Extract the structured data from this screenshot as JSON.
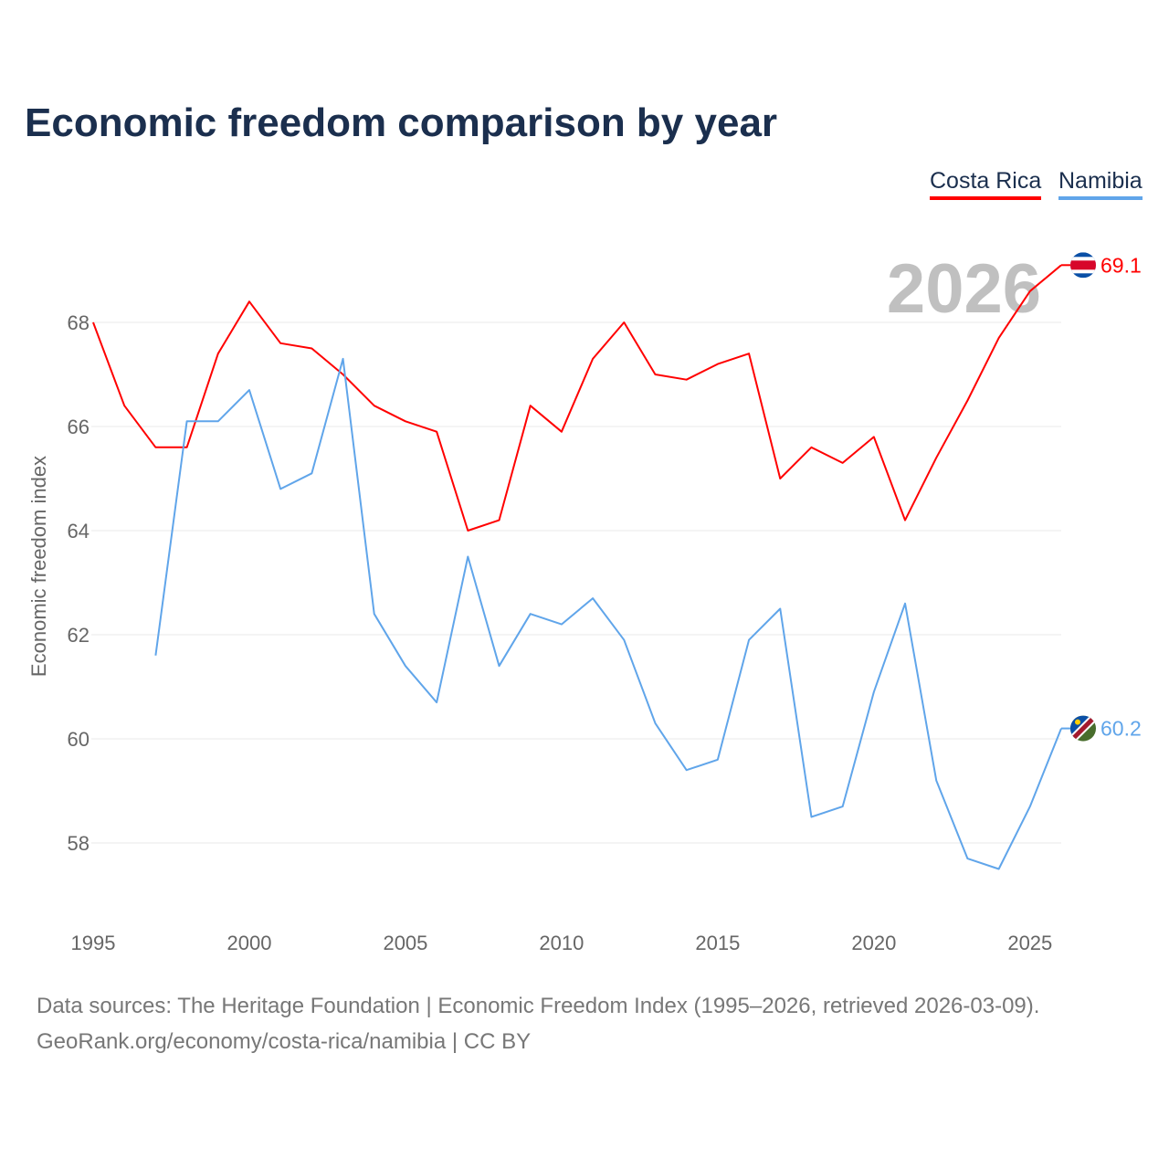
{
  "chart_data": {
    "type": "line",
    "title": "Economic freedom comparison by year",
    "xlabel": "",
    "ylabel": "Economic freedom index",
    "xlim": [
      1995,
      2026
    ],
    "ylim": [
      56.8,
      69.6
    ],
    "x_ticks": [
      1995,
      2000,
      2005,
      2010,
      2015,
      2020,
      2025
    ],
    "y_ticks": [
      58,
      60,
      62,
      64,
      66,
      68
    ],
    "grid": true,
    "legend_position": "top-right",
    "watermark_year": "2026",
    "series": [
      {
        "name": "Costa Rica",
        "color": "#ff0000",
        "end_label": "69.1",
        "x": [
          1995,
          1996,
          1997,
          1998,
          1999,
          2000,
          2001,
          2002,
          2003,
          2004,
          2005,
          2006,
          2007,
          2008,
          2009,
          2010,
          2011,
          2012,
          2013,
          2014,
          2015,
          2016,
          2017,
          2018,
          2019,
          2020,
          2021,
          2022,
          2023,
          2024,
          2025,
          2026
        ],
        "values": [
          68.0,
          66.4,
          65.6,
          65.6,
          67.4,
          68.4,
          67.6,
          67.5,
          67.0,
          66.4,
          66.1,
          65.9,
          64.0,
          64.2,
          66.4,
          65.9,
          67.3,
          68.0,
          67.0,
          66.9,
          67.2,
          67.4,
          65.0,
          65.6,
          65.3,
          65.8,
          64.2,
          65.4,
          66.5,
          67.7,
          68.6,
          69.1
        ]
      },
      {
        "name": "Namibia",
        "color": "#60a5ea",
        "end_label": "60.2",
        "x": [
          1997,
          1998,
          1999,
          2000,
          2001,
          2002,
          2003,
          2004,
          2005,
          2006,
          2007,
          2008,
          2009,
          2010,
          2011,
          2012,
          2013,
          2014,
          2015,
          2016,
          2017,
          2018,
          2019,
          2020,
          2021,
          2022,
          2023,
          2024,
          2025,
          2026
        ],
        "values": [
          61.6,
          66.1,
          66.1,
          66.7,
          64.8,
          65.1,
          67.3,
          62.4,
          61.4,
          60.7,
          63.5,
          61.4,
          62.4,
          62.2,
          62.7,
          61.9,
          60.3,
          59.4,
          59.6,
          61.9,
          62.5,
          58.5,
          58.7,
          60.9,
          62.6,
          59.2,
          57.7,
          57.5,
          58.7,
          60.2
        ]
      }
    ]
  },
  "footer": {
    "line1": "Data sources: The Heritage Foundation | Economic Freedom Index (1995–2026, retrieved 2026-03-09).",
    "line2": "GeoRank.org/economy/costa-rica/namibia | CC BY"
  }
}
